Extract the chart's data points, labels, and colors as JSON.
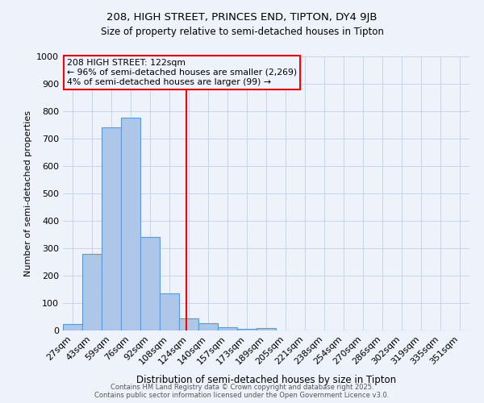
{
  "title1": "208, HIGH STREET, PRINCES END, TIPTON, DY4 9JB",
  "title2": "Size of property relative to semi-detached houses in Tipton",
  "xlabel": "Distribution of semi-detached houses by size in Tipton",
  "ylabel": "Number of semi-detached properties",
  "bar_labels": [
    "27sqm",
    "43sqm",
    "59sqm",
    "76sqm",
    "92sqm",
    "108sqm",
    "124sqm",
    "140sqm",
    "157sqm",
    "173sqm",
    "189sqm",
    "205sqm",
    "221sqm",
    "238sqm",
    "254sqm",
    "270sqm",
    "286sqm",
    "302sqm",
    "319sqm",
    "335sqm",
    "351sqm"
  ],
  "bar_values": [
    25,
    280,
    740,
    775,
    340,
    135,
    45,
    27,
    12,
    7,
    10,
    0,
    0,
    0,
    0,
    0,
    0,
    0,
    0,
    0,
    0
  ],
  "bar_color": "#aec6e8",
  "bar_edge_color": "#5b9bd5",
  "annotation_line1": "208 HIGH STREET: 122sqm",
  "annotation_line2": "← 96% of semi-detached houses are smaller (2,269)",
  "annotation_line3": "4% of semi-detached houses are larger (99) →",
  "ylim": [
    0,
    1000
  ],
  "yticks": [
    0,
    100,
    200,
    300,
    400,
    500,
    600,
    700,
    800,
    900,
    1000
  ],
  "footer1": "Contains HM Land Registry data © Crown copyright and database right 2025.",
  "footer2": "Contains public sector information licensed under the Open Government Licence v3.0.",
  "bg_color": "#eef2fa",
  "grid_color": "#c8d4e8"
}
